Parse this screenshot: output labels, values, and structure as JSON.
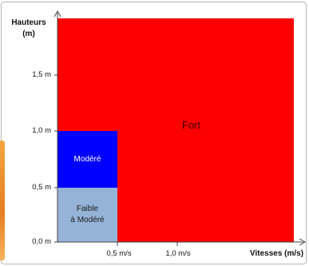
{
  "diagram": {
    "y_axis": {
      "label_line1": "Hauteurs",
      "label_line2": "(m)",
      "ticks": [
        "1,5 m",
        "1,0 m",
        "0,5 m",
        "0,0 m"
      ]
    },
    "x_axis": {
      "label": "Vitesses (m/s)",
      "ticks": [
        "0,5 m/s",
        "1,0 m/s"
      ]
    },
    "zones": {
      "fort": {
        "label": "Fort",
        "color": "#ff0000"
      },
      "modere": {
        "label": "Modéré",
        "color": "#0000ff"
      },
      "faible": {
        "label": "Faible\nà Modéré",
        "color": "#95b3d7"
      }
    }
  }
}
